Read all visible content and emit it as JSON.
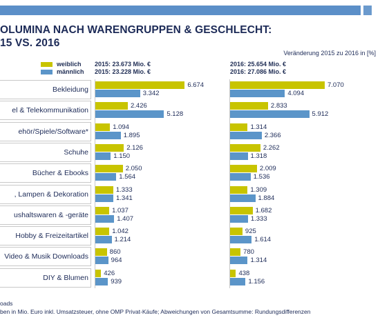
{
  "title_line1": "OLUMINA NACH WARENGRUPPEN & GESCHLECHT:",
  "title_line2": "15 VS. 2016",
  "caption": "Veränderung 2015 zu 2016 in [%]",
  "legend": {
    "female": "weiblich",
    "male": "männlich"
  },
  "colors": {
    "female": "#c8c400",
    "male": "#5b95c9",
    "accent": "#5b8fc8"
  },
  "periods": [
    {
      "female_total": "2015: 23.673 Mio. €",
      "male_total": "2015: 23.228 Mio. €"
    },
    {
      "female_total": "2016: 25.654 Mio. €",
      "male_total": "2016: 27.086 Mio. €"
    }
  ],
  "footnotes": [
    "oads",
    "ben in Mio. Euro inkl. Umsatzsteuer, ohne OMP Privat-Käufe; Abweichungen von Gesamtsumme: Rundungsdifferenzen"
  ],
  "chart_data": {
    "type": "bar",
    "orientation": "horizontal",
    "unit": "Mio. €",
    "categories": [
      "Bekleidung",
      "el & Telekommunikation",
      "ehör/Spiele/Software*",
      "Schuhe",
      "Bücher & Ebooks",
      ", Lampen & Dekoration",
      "ushaltswaren & -geräte",
      "Hobby & Freizeitartikel",
      "Video & Musik Downloads",
      "DIY & Blumen"
    ],
    "panels": [
      {
        "year": "2015",
        "series": [
          {
            "name": "weiblich",
            "values": [
              6.674,
              2.426,
              1.094,
              2.126,
              2.05,
              1.333,
              1.037,
              1.042,
              860,
              426
            ],
            "labels": [
              "6.674",
              "2.426",
              "1.094",
              "2.126",
              "2.050",
              "1.333",
              "1.037",
              "1.042",
              "860",
              "426"
            ]
          },
          {
            "name": "männlich",
            "values": [
              3.342,
              5.128,
              1.895,
              1.15,
              1.564,
              1.341,
              1.407,
              1.214,
              964,
              939
            ],
            "labels": [
              "3.342",
              "5.128",
              "1.895",
              "1.150",
              "1.564",
              "1.341",
              "1.407",
              "1.214",
              "964",
              "939"
            ]
          }
        ]
      },
      {
        "year": "2016",
        "series": [
          {
            "name": "weiblich",
            "values": [
              7.07,
              2.833,
              1.314,
              2.262,
              2.009,
              1.309,
              1.682,
              925,
              780,
              438
            ],
            "labels": [
              "7.070",
              "2.833",
              "1.314",
              "2.262",
              "2.009",
              "1.309",
              "1.682",
              "925",
              "780",
              "438"
            ]
          },
          {
            "name": "männlich",
            "values": [
              4.094,
              5.912,
              2.366,
              1.318,
              1.536,
              1.884,
              1.333,
              1.614,
              1.314,
              1.156
            ],
            "labels": [
              "4.094",
              "5.912",
              "2.366",
              "1.318",
              "1.536",
              "1.884",
              "1.333",
              "1.614",
              "1.314",
              "1.156"
            ]
          }
        ]
      }
    ],
    "xlim": [
      0,
      7070
    ]
  }
}
